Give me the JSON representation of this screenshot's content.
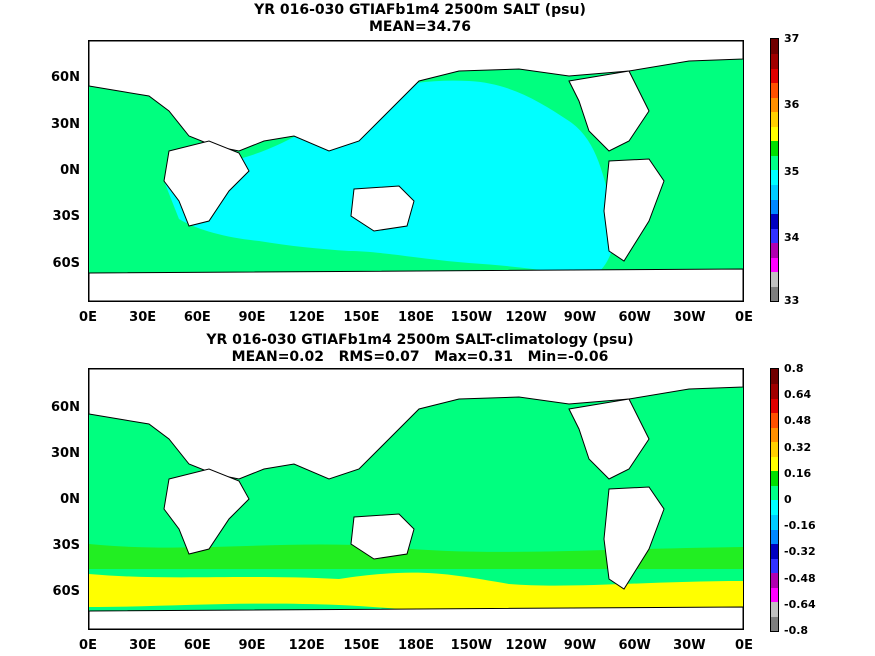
{
  "panels": [
    {
      "title_line1": "YR 016-030 GTIAFb1m4 2500m SALT (psu)",
      "title_line2": "MEAN=34.76",
      "lat_labels": [
        "60N",
        "30N",
        "0N",
        "30S",
        "60S"
      ],
      "lon_labels": [
        "0E",
        "30E",
        "60E",
        "90E",
        "120E",
        "150E",
        "180E",
        "150W",
        "120W",
        "90W",
        "60W",
        "30W",
        "0E"
      ],
      "colorbar_labels": [
        "37",
        "36",
        "35",
        "34",
        "33"
      ],
      "colorbar_colors": [
        "#7f7f7f",
        "#c0c0c0",
        "#ff00ff",
        "#b000b0",
        "#3030ff",
        "#0000c0",
        "#0088ff",
        "#00ccff",
        "#00ffff",
        "#00ff88",
        "#00e000",
        "#ffff00",
        "#ffd000",
        "#ff9000",
        "#ff5000",
        "#e00000",
        "#a00000",
        "#700000"
      ],
      "ocean_fill": "#00ff7f",
      "basin_fill": "#00ffff"
    },
    {
      "title_line1": "YR 016-030 GTIAFb1m4 2500m SALT-climatology (psu)",
      "title_line2": "MEAN=0.02   RMS=0.07   Max=0.31   Min=-0.06",
      "lat_labels": [
        "60N",
        "30N",
        "0N",
        "30S",
        "60S"
      ],
      "lon_labels": [
        "0E",
        "30E",
        "60E",
        "90E",
        "120E",
        "150E",
        "180E",
        "150W",
        "120W",
        "90W",
        "60W",
        "30W",
        "0E"
      ],
      "colorbar_labels": [
        "0.8",
        "0.64",
        "0.48",
        "0.32",
        "0.16",
        "0",
        "-0.16",
        "-0.32",
        "-0.48",
        "-0.64",
        "-0.8"
      ],
      "colorbar_colors": [
        "#7f7f7f",
        "#c0c0c0",
        "#ff00ff",
        "#b000b0",
        "#3030ff",
        "#0000c0",
        "#0088ff",
        "#00ccff",
        "#00ffff",
        "#00ff88",
        "#00e000",
        "#ffff00",
        "#ffd000",
        "#ff9000",
        "#ff5000",
        "#e00000",
        "#a00000",
        "#700000"
      ],
      "ocean_fill": "#00ff7f",
      "band_fill": "#ffff00"
    }
  ]
}
